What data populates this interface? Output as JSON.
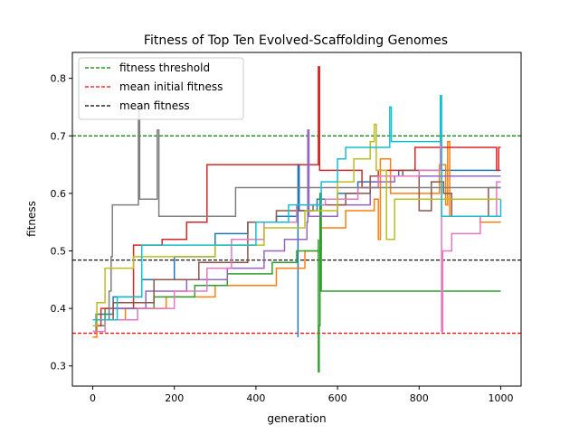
{
  "chart_data": {
    "type": "line",
    "title": "Fitness of Top Ten Evolved-Scaffolding Genomes",
    "xlabel": "generation",
    "ylabel": "fitness",
    "xlim": [
      -50,
      1050
    ],
    "ylim": [
      0.265,
      0.845
    ],
    "xticks": [
      0,
      200,
      400,
      600,
      800,
      1000
    ],
    "yticks": [
      0.3,
      0.4,
      0.5,
      0.6,
      0.7,
      0.8
    ],
    "grid": false,
    "legend_position": "top-left",
    "reference_lines": [
      {
        "name": "fitness threshold",
        "y": 0.7,
        "color": "#008000"
      },
      {
        "name": "mean initial fitness",
        "y": 0.357,
        "color": "#ff0000"
      },
      {
        "name": "mean fitness",
        "y": 0.484,
        "color": "#000000"
      }
    ],
    "series": [
      {
        "color": "#1f77b4",
        "points": [
          [
            0,
            0.36
          ],
          [
            8,
            0.39
          ],
          [
            50,
            0.42
          ],
          [
            120,
            0.45
          ],
          [
            200,
            0.49
          ],
          [
            300,
            0.53
          ],
          [
            380,
            0.55
          ],
          [
            450,
            0.56
          ],
          [
            500,
            0.58
          ],
          [
            503,
            0.35
          ],
          [
            503,
            0.65
          ],
          [
            506,
            0.57
          ],
          [
            550,
            0.59
          ],
          [
            600,
            0.6
          ],
          [
            650,
            0.62
          ],
          [
            700,
            0.63
          ],
          [
            750,
            0.64
          ],
          [
            1000,
            0.64
          ]
        ]
      },
      {
        "color": "#ff7f0e",
        "points": [
          [
            0,
            0.35
          ],
          [
            10,
            0.38
          ],
          [
            80,
            0.4
          ],
          [
            180,
            0.42
          ],
          [
            300,
            0.44
          ],
          [
            450,
            0.47
          ],
          [
            520,
            0.5
          ],
          [
            560,
            0.54
          ],
          [
            620,
            0.57
          ],
          [
            690,
            0.59
          ],
          [
            700,
            0.52
          ],
          [
            705,
            0.66
          ],
          [
            730,
            0.6
          ],
          [
            850,
            0.65
          ],
          [
            865,
            0.58
          ],
          [
            870,
            0.69
          ],
          [
            875,
            0.56
          ],
          [
            950,
            0.55
          ],
          [
            1000,
            0.55
          ]
        ]
      },
      {
        "color": "#2ca02c",
        "points": [
          [
            0,
            0.37
          ],
          [
            30,
            0.4
          ],
          [
            150,
            0.42
          ],
          [
            250,
            0.44
          ],
          [
            330,
            0.46
          ],
          [
            440,
            0.48
          ],
          [
            500,
            0.5
          ],
          [
            553,
            0.52
          ],
          [
            553,
            0.29
          ],
          [
            555,
            0.37
          ],
          [
            557,
            0.6
          ],
          [
            560,
            0.43
          ],
          [
            1000,
            0.43
          ]
        ]
      },
      {
        "color": "#d62728",
        "points": [
          [
            0,
            0.37
          ],
          [
            20,
            0.4
          ],
          [
            100,
            0.51
          ],
          [
            170,
            0.52
          ],
          [
            230,
            0.55
          ],
          [
            280,
            0.65
          ],
          [
            400,
            0.65
          ],
          [
            550,
            0.65
          ],
          [
            553,
            0.82
          ],
          [
            556,
            0.64
          ],
          [
            660,
            0.61
          ],
          [
            700,
            0.64
          ],
          [
            790,
            0.68
          ],
          [
            990,
            0.64
          ],
          [
            995,
            0.68
          ],
          [
            1000,
            0.68
          ]
        ]
      },
      {
        "color": "#9467bd",
        "points": [
          [
            0,
            0.38
          ],
          [
            40,
            0.4
          ],
          [
            130,
            0.43
          ],
          [
            230,
            0.45
          ],
          [
            330,
            0.47
          ],
          [
            420,
            0.5
          ],
          [
            470,
            0.52
          ],
          [
            525,
            0.55
          ],
          [
            527,
            0.71
          ],
          [
            530,
            0.56
          ],
          [
            600,
            0.58
          ],
          [
            680,
            0.62
          ],
          [
            740,
            0.63
          ],
          [
            1000,
            0.63
          ]
        ]
      },
      {
        "color": "#8c564b",
        "points": [
          [
            0,
            0.38
          ],
          [
            50,
            0.41
          ],
          [
            150,
            0.45
          ],
          [
            260,
            0.48
          ],
          [
            380,
            0.55
          ],
          [
            450,
            0.57
          ],
          [
            540,
            0.58
          ],
          [
            620,
            0.6
          ],
          [
            680,
            0.63
          ],
          [
            760,
            0.64
          ],
          [
            800,
            0.57
          ],
          [
            830,
            0.62
          ],
          [
            860,
            0.6
          ],
          [
            880,
            0.56
          ],
          [
            970,
            0.61
          ],
          [
            1000,
            0.61
          ]
        ]
      },
      {
        "color": "#e377c2",
        "points": [
          [
            0,
            0.36
          ],
          [
            30,
            0.38
          ],
          [
            110,
            0.4
          ],
          [
            200,
            0.43
          ],
          [
            280,
            0.47
          ],
          [
            340,
            0.52
          ],
          [
            420,
            0.55
          ],
          [
            500,
            0.58
          ],
          [
            570,
            0.59
          ],
          [
            650,
            0.61
          ],
          [
            700,
            0.63
          ],
          [
            800,
            0.64
          ],
          [
            848,
            0.64
          ],
          [
            852,
            0.7
          ],
          [
            855,
            0.36
          ],
          [
            858,
            0.5
          ],
          [
            880,
            0.53
          ],
          [
            950,
            0.56
          ],
          [
            990,
            0.62
          ],
          [
            1000,
            0.62
          ]
        ]
      },
      {
        "color": "#7f7f7f",
        "points": [
          [
            0,
            0.38
          ],
          [
            40,
            0.43
          ],
          [
            45,
            0.49
          ],
          [
            48,
            0.58
          ],
          [
            110,
            0.58
          ],
          [
            112,
            0.75
          ],
          [
            115,
            0.59
          ],
          [
            155,
            0.59
          ],
          [
            158,
            0.71
          ],
          [
            162,
            0.56
          ],
          [
            250,
            0.56
          ],
          [
            350,
            0.61
          ],
          [
            1000,
            0.61
          ]
        ]
      },
      {
        "color": "#bcbd22",
        "points": [
          [
            0,
            0.37
          ],
          [
            10,
            0.41
          ],
          [
            30,
            0.47
          ],
          [
            100,
            0.49
          ],
          [
            200,
            0.49
          ],
          [
            300,
            0.51
          ],
          [
            420,
            0.54
          ],
          [
            520,
            0.57
          ],
          [
            600,
            0.62
          ],
          [
            640,
            0.66
          ],
          [
            680,
            0.69
          ],
          [
            690,
            0.72
          ],
          [
            695,
            0.64
          ],
          [
            720,
            0.52
          ],
          [
            740,
            0.59
          ],
          [
            1000,
            0.59
          ]
        ]
      },
      {
        "color": "#17becf",
        "points": [
          [
            0,
            0.38
          ],
          [
            60,
            0.42
          ],
          [
            120,
            0.51
          ],
          [
            310,
            0.51
          ],
          [
            400,
            0.55
          ],
          [
            480,
            0.58
          ],
          [
            560,
            0.62
          ],
          [
            600,
            0.66
          ],
          [
            620,
            0.68
          ],
          [
            720,
            0.68
          ],
          [
            728,
            0.75
          ],
          [
            732,
            0.69
          ],
          [
            840,
            0.69
          ],
          [
            852,
            0.77
          ],
          [
            855,
            0.56
          ],
          [
            1000,
            0.59
          ]
        ]
      }
    ]
  }
}
